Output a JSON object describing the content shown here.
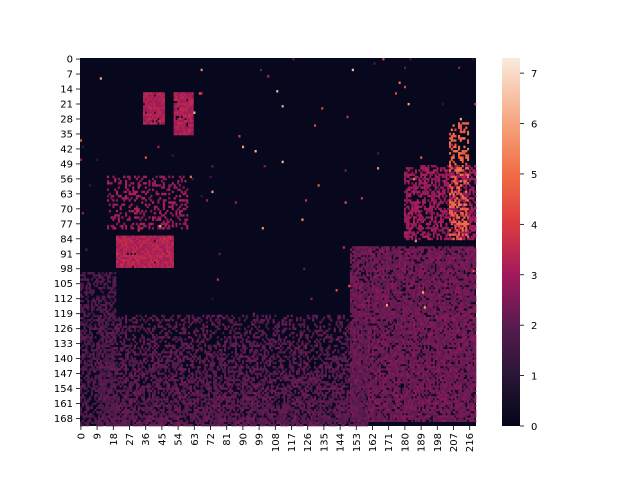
{
  "chart_data": {
    "type": "heatmap",
    "title": "",
    "xlabel": "",
    "ylabel": "",
    "n_rows": 172,
    "n_cols": 220,
    "x_tick_labels": [
      "0",
      "9",
      "18",
      "27",
      "36",
      "45",
      "54",
      "63",
      "72",
      "81",
      "90",
      "99",
      "108",
      "117",
      "126",
      "135",
      "144",
      "153",
      "162",
      "171",
      "180",
      "189",
      "198",
      "207",
      "216"
    ],
    "y_tick_labels": [
      "0",
      "7",
      "14",
      "21",
      "28",
      "35",
      "42",
      "49",
      "56",
      "63",
      "70",
      "77",
      "84",
      "91",
      "98",
      "105",
      "112",
      "119",
      "126",
      "133",
      "140",
      "147",
      "154",
      "161",
      "168"
    ],
    "x_tick_step": 9,
    "y_tick_step": 7,
    "colorbar": {
      "min": 0,
      "max": 7.3,
      "tick_labels": [
        "0",
        "1",
        "2",
        "3",
        "4",
        "5",
        "6",
        "7"
      ],
      "tick_values": [
        0,
        1,
        2,
        3,
        4,
        5,
        6,
        7
      ],
      "colormap": "rocket"
    },
    "background_level": 0.1,
    "regions": [
      {
        "label": "upper-left block",
        "rows": [
          16,
          31
        ],
        "cols": [
          35,
          47
        ],
        "value": 3.2
      },
      {
        "label": "upper-left block 2",
        "rows": [
          16,
          36
        ],
        "cols": [
          52,
          63
        ],
        "value": 3.2
      },
      {
        "label": "left block",
        "rows": [
          83,
          98
        ],
        "cols": [
          20,
          52
        ],
        "value": 3.3
      },
      {
        "label": "left scatter",
        "rows": [
          55,
          80
        ],
        "cols": [
          15,
          60
        ],
        "value": 2.9
      },
      {
        "label": "right figure",
        "rows": [
          88,
          170
        ],
        "cols": [
          150,
          220
        ],
        "value": 2.3
      },
      {
        "label": "right upper figure",
        "rows": [
          50,
          85
        ],
        "cols": [
          180,
          220
        ],
        "value": 2.9
      },
      {
        "label": "bottom floor",
        "rows": [
          120,
          172
        ],
        "cols": [
          10,
          160
        ],
        "value": 2.0
      },
      {
        "label": "bottom left edge",
        "rows": [
          100,
          172
        ],
        "cols": [
          0,
          20
        ],
        "value": 1.8
      },
      {
        "label": "hot streak",
        "rows": [
          30,
          85
        ],
        "cols": [
          205,
          216
        ],
        "value": 4.8
      }
    ]
  }
}
